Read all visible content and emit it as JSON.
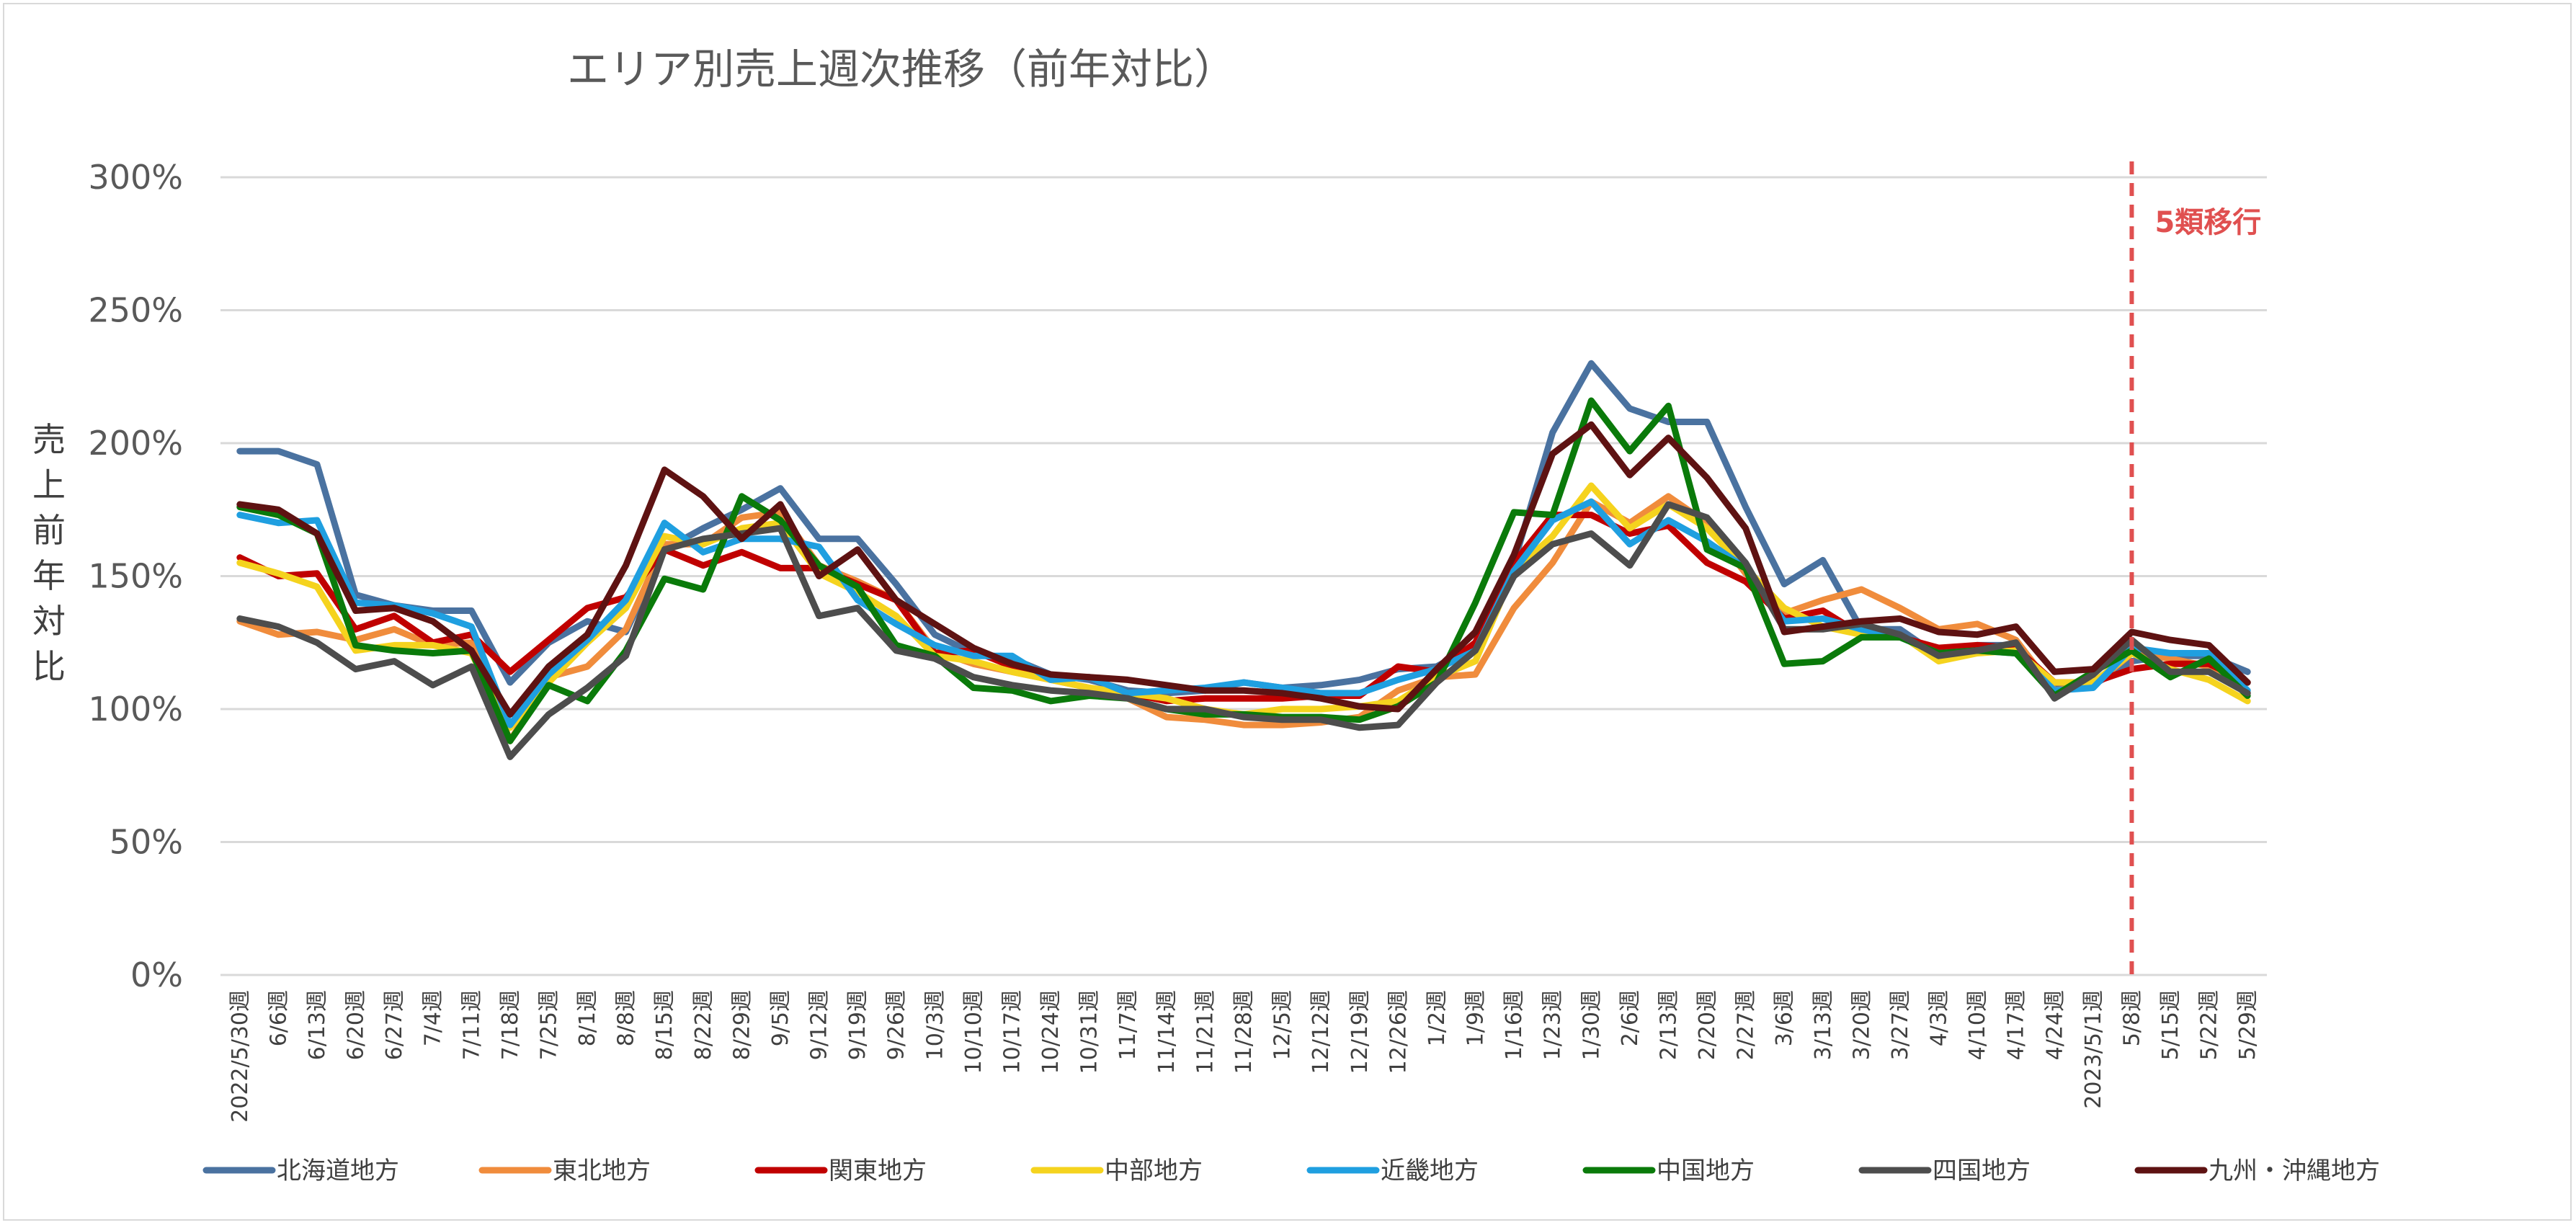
{
  "chart_data": {
    "type": "line",
    "title": "エリア別売上週次推移（前年対比）",
    "ylabel": "売上前年対比",
    "ylim": [
      0,
      300
    ],
    "yticks": [
      0,
      50,
      100,
      150,
      200,
      250,
      300
    ],
    "ytick_labels": [
      "0%",
      "50%",
      "100%",
      "150%",
      "200%",
      "250%",
      "300%"
    ],
    "grid": true,
    "legend_position": "bottom",
    "categories": [
      "2022/5/30週",
      "6/6週",
      "6/13週",
      "6/20週",
      "6/27週",
      "7/4週",
      "7/11週",
      "7/18週",
      "7/25週",
      "8/1週",
      "8/8週",
      "8/15週",
      "8/22週",
      "8/29週",
      "9/5週",
      "9/12週",
      "9/19週",
      "9/26週",
      "10/3週",
      "10/10週",
      "10/17週",
      "10/24週",
      "10/31週",
      "11/7週",
      "11/14週",
      "11/21週",
      "11/28週",
      "12/5週",
      "12/12週",
      "12/19週",
      "12/26週",
      "1/2週",
      "1/9週",
      "1/16週",
      "1/23週",
      "1/30週",
      "2/6週",
      "2/13週",
      "2/20週",
      "2/27週",
      "3/6週",
      "3/13週",
      "3/20週",
      "3/27週",
      "4/3週",
      "4/10週",
      "4/17週",
      "4/24週",
      "2023/5/1週",
      "5/8週",
      "5/15週",
      "5/22週",
      "5/29週"
    ],
    "annotation": {
      "label": "5類移行",
      "category": "5/8週",
      "color": "#e05050"
    },
    "series": [
      {
        "name": "北海道地方",
        "color": "#4a72a0",
        "values": [
          197,
          197,
          192,
          143,
          139,
          137,
          137,
          110,
          125,
          133,
          129,
          160,
          168,
          175,
          183,
          164,
          164,
          147,
          128,
          121,
          119,
          113,
          111,
          107,
          106,
          107,
          110,
          108,
          109,
          111,
          115,
          116,
          124,
          155,
          204,
          230,
          213,
          208,
          208,
          176,
          147,
          156,
          130,
          130,
          120,
          124,
          124,
          109,
          109,
          118,
          120,
          120,
          114
        ]
      },
      {
        "name": "東北地方",
        "color": "#f08c3c",
        "values": [
          133,
          128,
          129,
          126,
          130,
          124,
          125,
          88,
          112,
          116,
          130,
          162,
          162,
          172,
          174,
          154,
          148,
          141,
          122,
          117,
          114,
          111,
          108,
          104,
          97,
          96,
          94,
          94,
          95,
          97,
          107,
          112,
          113,
          138,
          155,
          178,
          170,
          180,
          170,
          151,
          136,
          141,
          145,
          138,
          130,
          132,
          126,
          107,
          109,
          121,
          119,
          116,
          106
        ]
      },
      {
        "name": "関東地方",
        "color": "#c00000",
        "values": [
          157,
          150,
          151,
          130,
          135,
          125,
          128,
          114,
          126,
          138,
          142,
          160,
          154,
          159,
          153,
          153,
          147,
          141,
          121,
          122,
          116,
          112,
          112,
          106,
          103,
          104,
          104,
          104,
          105,
          105,
          116,
          114,
          125,
          155,
          173,
          173,
          166,
          169,
          155,
          148,
          134,
          137,
          128,
          127,
          123,
          124,
          123,
          110,
          110,
          115,
          117,
          117,
          110
        ]
      },
      {
        "name": "中部地方",
        "color": "#f5d31e",
        "values": [
          155,
          151,
          146,
          122,
          124,
          124,
          121,
          93,
          110,
          125,
          138,
          165,
          162,
          168,
          170,
          151,
          144,
          135,
          120,
          118,
          114,
          111,
          108,
          106,
          104,
          100,
          98,
          100,
          100,
          101,
          103,
          112,
          118,
          152,
          165,
          184,
          168,
          177,
          168,
          153,
          138,
          131,
          128,
          128,
          118,
          121,
          122,
          110,
          110,
          121,
          115,
          111,
          103
        ]
      },
      {
        "name": "近畿地方",
        "color": "#1f9fe0",
        "values": [
          173,
          170,
          171,
          140,
          139,
          136,
          131,
          94,
          113,
          126,
          141,
          170,
          159,
          164,
          164,
          161,
          141,
          132,
          124,
          120,
          120,
          111,
          112,
          106,
          107,
          108,
          110,
          108,
          106,
          106,
          111,
          115,
          122,
          152,
          171,
          178,
          162,
          171,
          163,
          153,
          133,
          134,
          130,
          127,
          121,
          122,
          121,
          107,
          108,
          123,
          121,
          121,
          107
        ]
      },
      {
        "name": "中国地方",
        "color": "#0a7a0a",
        "values": [
          176,
          173,
          166,
          124,
          122,
          121,
          122,
          88,
          109,
          103,
          122,
          149,
          145,
          180,
          171,
          154,
          146,
          124,
          120,
          108,
          107,
          103,
          105,
          104,
          100,
          98,
          98,
          97,
          97,
          96,
          101,
          110,
          140,
          174,
          173,
          216,
          197,
          214,
          160,
          153,
          117,
          118,
          127,
          127,
          121,
          122,
          121,
          105,
          114,
          122,
          112,
          119,
          105
        ]
      },
      {
        "name": "四国地方",
        "color": "#4d4d4d",
        "values": [
          134,
          131,
          125,
          115,
          118,
          109,
          116,
          82,
          98,
          108,
          120,
          160,
          164,
          166,
          168,
          135,
          138,
          122,
          119,
          112,
          109,
          107,
          106,
          104,
          100,
          100,
          97,
          96,
          96,
          93,
          94,
          110,
          122,
          150,
          162,
          166,
          154,
          177,
          172,
          155,
          130,
          130,
          132,
          128,
          120,
          122,
          125,
          104,
          113,
          126,
          114,
          114,
          106
        ]
      },
      {
        "name": "九州・沖縄地方",
        "color": "#5e1212",
        "values": [
          177,
          175,
          166,
          137,
          138,
          133,
          122,
          98,
          116,
          128,
          154,
          190,
          180,
          164,
          177,
          150,
          160,
          141,
          132,
          123,
          117,
          113,
          112,
          111,
          109,
          107,
          107,
          106,
          104,
          101,
          100,
          115,
          129,
          158,
          196,
          207,
          188,
          202,
          187,
          168,
          129,
          131,
          133,
          134,
          129,
          128,
          131,
          114,
          115,
          129,
          126,
          124,
          110
        ]
      }
    ]
  }
}
